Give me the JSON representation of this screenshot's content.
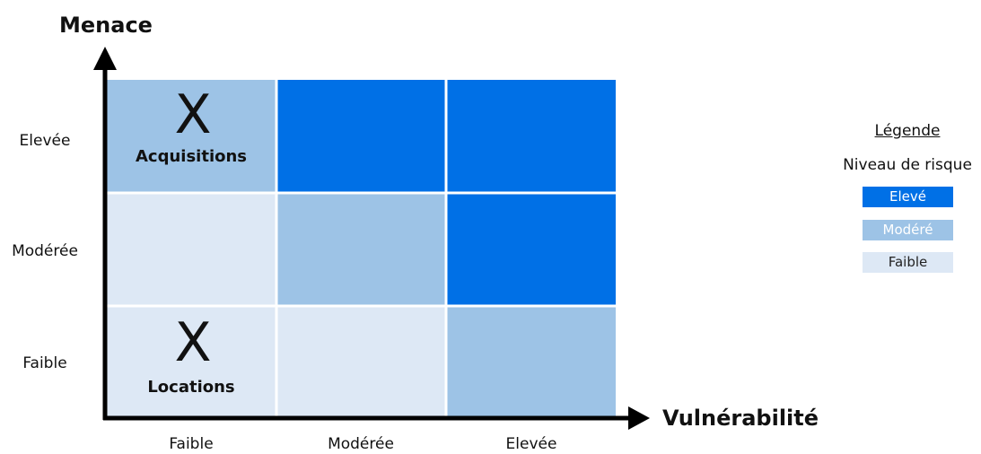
{
  "chart_data": {
    "type": "heatmap",
    "ylabel": "Menace",
    "xlabel": "Vulnérabilité",
    "x_categories": [
      "Faible",
      "Modérée",
      "Elevée"
    ],
    "y_categories": [
      "Elevée",
      "Modérée",
      "Faible"
    ],
    "levels": [
      [
        "Modéré",
        "Elevé",
        "Elevé"
      ],
      [
        "Faible",
        "Modéré",
        "Elevé"
      ],
      [
        "Faible",
        "Faible",
        "Modéré"
      ]
    ],
    "markers": [
      {
        "row": 0,
        "col": 0,
        "symbol": "X",
        "label": "Acquisitions"
      },
      {
        "row": 2,
        "col": 0,
        "symbol": "X",
        "label": "Locations"
      }
    ],
    "legend": {
      "title": "Légende",
      "subtitle": "Niveau de risque",
      "items": [
        {
          "label": "Elevé",
          "color": "#0070e6",
          "text_color": "#ffffff"
        },
        {
          "label": "Modéré",
          "color": "#9dc3e6",
          "text_color": "#ffffff"
        },
        {
          "label": "Faible",
          "color": "#dde8f5",
          "text_color": "#222222"
        }
      ]
    }
  }
}
